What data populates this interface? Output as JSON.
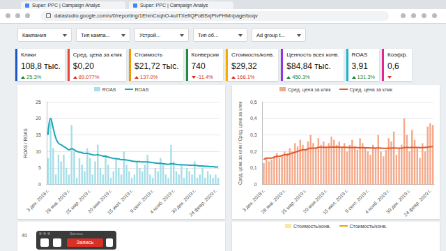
{
  "browser": {
    "tabs": [
      "Super: PPC | Campaign Analys",
      "Super: PPC | Campaign Analys"
    ],
    "url": "datastudio.google.com/u/0/reporting/1EhmCxqhO-kuITXefIQPoBSxjPivFHMr/page/boqv"
  },
  "filters": [
    "Кампания",
    "Тип кампа...",
    "Устрой...",
    "Тип об...",
    "Ad group t..."
  ],
  "kpis": [
    {
      "title": "Клики",
      "value": "108,8 тыс.",
      "delta": "25.3%",
      "direction": "up",
      "delta_color": "#188038",
      "color": "#1a56c8"
    },
    {
      "title": "Сред. цена за клик",
      "value": "$0,20",
      "delta": "89.077%",
      "direction": "up",
      "delta_color": "#d93025",
      "color": "#e8453c"
    },
    {
      "title": "Стоимость",
      "value": "$21,72 тыс.",
      "delta": "137.0%",
      "direction": "up",
      "delta_color": "#d93025",
      "color": "#f29900"
    },
    {
      "title": "Конверсии",
      "value": "740",
      "delta": "-11.4%",
      "direction": "down",
      "delta_color": "#d93025",
      "color": "#1e8e3e"
    },
    {
      "title": "Стоимость/конв.",
      "value": "$29,32",
      "delta": "168.1%",
      "direction": "up",
      "delta_color": "#d93025",
      "color": "#f9ab00"
    },
    {
      "title": "Ценность всех конв.",
      "value": "$84,84 тыс.",
      "delta": "450.3%",
      "direction": "up",
      "delta_color": "#188038",
      "color": "#9334e6"
    },
    {
      "title": "ROAS",
      "value": "3,91",
      "delta": "131.3%",
      "direction": "up",
      "delta_color": "#188038",
      "color": "#12b5cb"
    },
    {
      "title": "Коэфф.",
      "value": "0,6",
      "direction": "down",
      "delta_color": "#d93025",
      "color": "#e52592"
    }
  ],
  "chart_data": [
    {
      "type": "bar",
      "y_label": "ROAS / ROAS",
      "legend": "top",
      "grid": true,
      "categories": [
        "3 дек. 2018 г.",
        null,
        null,
        null,
        null,
        null,
        null,
        null,
        "28 янв. 2019 г.",
        null,
        null,
        null,
        null,
        null,
        null,
        null,
        "25 мар. 2019 г.",
        null,
        null,
        null,
        null,
        null,
        null,
        null,
        "20 мая 2019 г.",
        null,
        null,
        null,
        null,
        null,
        null,
        null,
        "15 июл. 2019 г.",
        null,
        null,
        null,
        null,
        null,
        null,
        null,
        "9 сент. 2019 г.",
        null,
        null,
        null,
        null,
        null,
        null,
        null,
        "4 нояб. 2019 г.",
        null,
        null,
        null,
        null,
        null,
        null,
        null,
        "30 дек. 2019 г.",
        null,
        null,
        null,
        null,
        null,
        null,
        null,
        "24 февр. 2020 г.",
        null
      ],
      "series": [
        {
          "name": "ROAS",
          "type": "bar",
          "color": "#a6dfe9",
          "values": [
            8,
            20,
            11,
            3,
            9,
            7,
            9,
            5,
            3,
            18,
            10,
            2,
            8,
            6,
            4,
            11,
            8,
            3,
            7,
            12,
            5,
            3,
            9,
            6,
            2,
            4,
            8,
            5,
            3,
            10,
            6,
            4,
            2,
            3,
            7,
            5,
            4,
            6,
            9,
            3,
            2,
            5,
            4,
            8,
            6,
            3,
            2,
            12,
            7,
            4,
            3,
            6,
            2,
            5,
            4,
            3,
            7,
            2,
            3,
            5,
            2,
            4,
            3,
            2,
            3,
            2
          ]
        },
        {
          "name": "ROAS",
          "type": "line",
          "color": "#1aa6b7",
          "values": [
            15,
            20,
            17,
            14,
            12.5,
            12,
            11.5,
            11,
            10.5,
            10.8,
            10.5,
            10,
            9.8,
            9.6,
            9.4,
            9.4,
            9.2,
            9,
            8.9,
            9,
            8.8,
            8.6,
            8.5,
            8.3,
            8.1,
            7.9,
            7.8,
            7.7,
            7.5,
            7.5,
            7.4,
            7.3,
            7.1,
            7,
            6.9,
            6.9,
            6.8,
            6.8,
            6.8,
            6.7,
            6.6,
            6.5,
            6.4,
            6.4,
            6.3,
            6.2,
            6.1,
            6.3,
            6.2,
            6.1,
            6,
            6,
            5.9,
            5.9,
            5.8,
            5.8,
            5.8,
            5.7,
            5.6,
            5.6,
            5.5,
            5.5,
            5.4,
            5.4,
            5.3,
            5.3
          ]
        }
      ],
      "ylim": [
        0,
        25
      ],
      "yticks": [
        0,
        5,
        10,
        15,
        20,
        25
      ]
    },
    {
      "type": "bar",
      "y_label": "Сред. цена за клик / Сред. цена за клик",
      "legend": "top",
      "grid": true,
      "categories": [
        "3 дек. 2018 г.",
        null,
        null,
        null,
        null,
        null,
        null,
        null,
        "28 янв. 2019 г.",
        null,
        null,
        null,
        null,
        null,
        null,
        null,
        "25 мар. 2019 г.",
        null,
        null,
        null,
        null,
        null,
        null,
        null,
        "20 мая 2019 г.",
        null,
        null,
        null,
        null,
        null,
        null,
        null,
        "15 июл. 2019 г.",
        null,
        null,
        null,
        null,
        null,
        null,
        null,
        "9 сент. 2019 г.",
        null,
        null,
        null,
        null,
        null,
        null,
        null,
        "4 нояб. 2019 г.",
        null,
        null,
        null,
        null,
        null,
        null,
        null,
        "30 дек. 2019 г.",
        null,
        null,
        null,
        null,
        null,
        null,
        null,
        "24 февр. 2020 г.",
        null
      ],
      "series": [
        {
          "name": "Сред. цена за клик",
          "type": "bar",
          "color": "#f4a98a",
          "values": [
            0.13,
            0.16,
            0.14,
            0.15,
            0.17,
            0.19,
            0.16,
            0.18,
            0.2,
            0.19,
            0.22,
            0.2,
            0.25,
            0.23,
            0.27,
            0.24,
            0.21,
            0.26,
            0.3,
            0.25,
            0.22,
            0.28,
            0.24,
            0.26,
            0.23,
            0.25,
            0.29,
            0.27,
            0.24,
            0.26,
            0.22,
            0.25,
            0.2,
            0.24,
            0.27,
            0.23,
            0.21,
            0.28,
            0.25,
            0.22,
            0.2,
            0.18,
            0.24,
            0.22,
            0.3,
            0.2,
            0.17,
            0.21,
            0.28,
            0.26,
            0.32,
            0.18,
            0.22,
            0.24,
            0.4,
            0.3,
            0.2,
            0.33,
            0.27,
            0.22,
            0.16,
            0.25,
            0.2,
            0.35,
            0.37,
            0.36
          ]
        },
        {
          "name": "Сред. цена за клик",
          "type": "line",
          "color": "#e2572b",
          "values": [
            0.15,
            0.16,
            0.16,
            0.16,
            0.165,
            0.17,
            0.17,
            0.175,
            0.18,
            0.18,
            0.185,
            0.19,
            0.195,
            0.2,
            0.205,
            0.21,
            0.21,
            0.215,
            0.22,
            0.22,
            0.22,
            0.225,
            0.225,
            0.225,
            0.225,
            0.225,
            0.226,
            0.226,
            0.226,
            0.225,
            0.225,
            0.225,
            0.224,
            0.224,
            0.224,
            0.224,
            0.223,
            0.223,
            0.223,
            0.222,
            0.222,
            0.221,
            0.221,
            0.22,
            0.221,
            0.22,
            0.219,
            0.219,
            0.22,
            0.22,
            0.221,
            0.22,
            0.22,
            0.22,
            0.223,
            0.224,
            0.223,
            0.224,
            0.224,
            0.224,
            0.223,
            0.223,
            0.224,
            0.226,
            0.228,
            0.229
          ]
        }
      ],
      "ylim": [
        0,
        0.5
      ],
      "yticks": [
        0,
        {
          "value": 0.1,
          "label": "0,1"
        },
        {
          "value": 0.2,
          "label": "0,2"
        },
        {
          "value": 0.3,
          "label": "0,3"
        },
        {
          "value": 0.4,
          "label": "0,4"
        },
        {
          "value": 0.5,
          "label": "0,5"
        }
      ]
    }
  ],
  "bottom_left_panel": {
    "yticks": [
      40
    ]
  },
  "bottom_right_panel": {
    "legend": [
      {
        "name": "Стоимость/конв.",
        "type": "bar",
        "color": "#fbe6a2"
      },
      {
        "name": "Стоимость/конв.",
        "type": "line",
        "color": "#f4a300"
      }
    ]
  },
  "recorder": {
    "title": "Запись",
    "button": "Запись"
  }
}
